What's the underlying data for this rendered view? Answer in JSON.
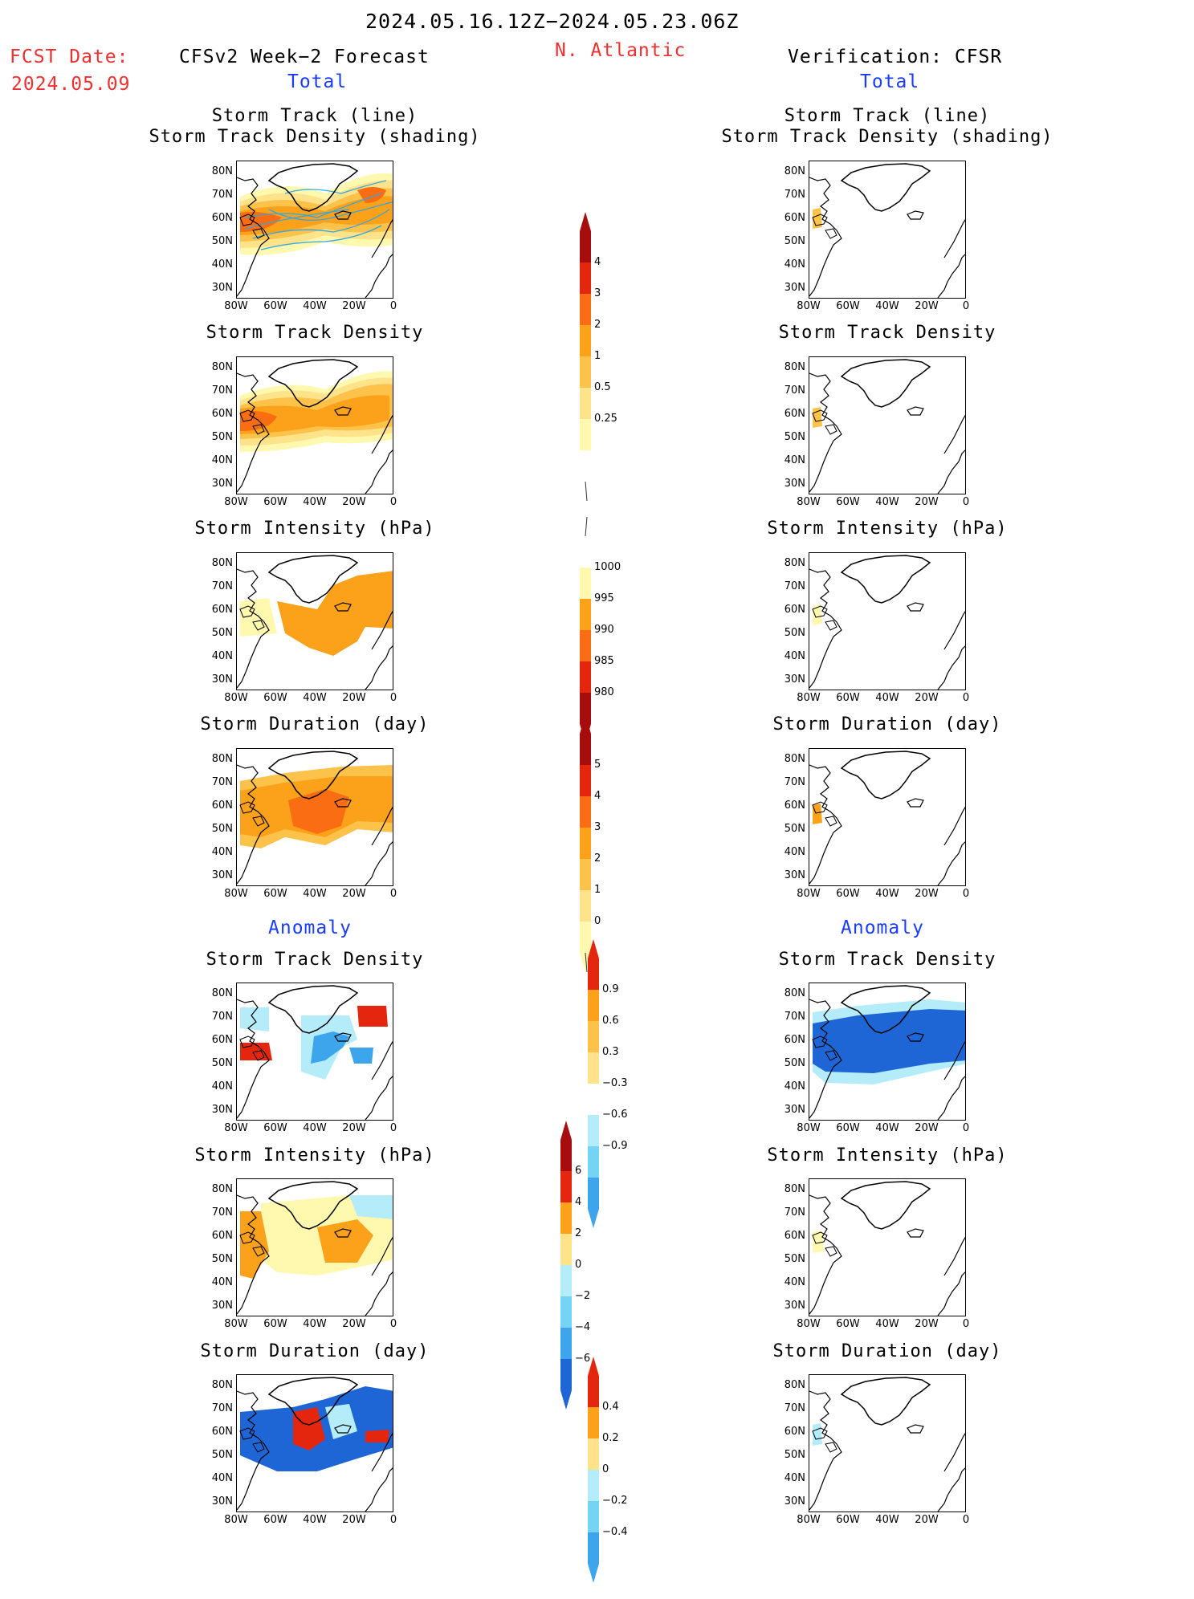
{
  "header": {
    "date_range": "2024.05.16.12Z−2024.05.23.06Z",
    "fcst_label": "FCST Date:",
    "fcst_date": "2024.05.09",
    "model": "CFSv2 Week−2 Forecast",
    "region": "N. Atlantic",
    "verification": "Verification: CFSR",
    "total_left": "Total",
    "total_right": "Total",
    "anomaly_left": "Anomaly",
    "anomaly_right": "Anomaly"
  },
  "panel_titles": {
    "track_line": "Storm Track (line)",
    "track_shading": "Storm Track Density (shading)",
    "density": "Storm Track Density",
    "intensity": "Storm Intensity (hPa)",
    "duration": "Storm Duration (day)"
  },
  "axes": {
    "lat_ticks": [
      "80N",
      "70N",
      "60N",
      "50N",
      "40N",
      "30N"
    ],
    "lon_ticks": [
      "80W",
      "60W",
      "40W",
      "20W",
      "0"
    ]
  },
  "colors": {
    "light_yellow": "#fff9b0",
    "yellow": "#ffe38a",
    "light_orange": "#fcc24a",
    "orange": "#fca11a",
    "dark_orange": "#fa6d12",
    "red": "#e4260e",
    "dark_red": "#a80d0d",
    "light_blue": "#b4ecfa",
    "sky_blue": "#75d3f5",
    "blue": "#3da5ec",
    "deep_blue": "#1e66d6",
    "track_line": "#33a7e0"
  },
  "colorbars": {
    "density_total": [
      "4",
      "3",
      "2",
      "1",
      "0.5",
      "0.25"
    ],
    "intensity_total": [
      "1000",
      "995",
      "990",
      "985",
      "980"
    ],
    "duration_total": [
      "5",
      "4",
      "3",
      "2",
      "1",
      "0"
    ],
    "density_anomaly": [
      "0.9",
      "0.6",
      "0.3",
      "−0.3",
      "−0.6",
      "−0.9"
    ],
    "intensity_anomaly": [
      "6",
      "4",
      "2",
      "0",
      "−2",
      "−4",
      "−6"
    ],
    "duration_anomaly": [
      "0.4",
      "0.2",
      "0",
      "−0.2",
      "−0.4"
    ]
  }
}
